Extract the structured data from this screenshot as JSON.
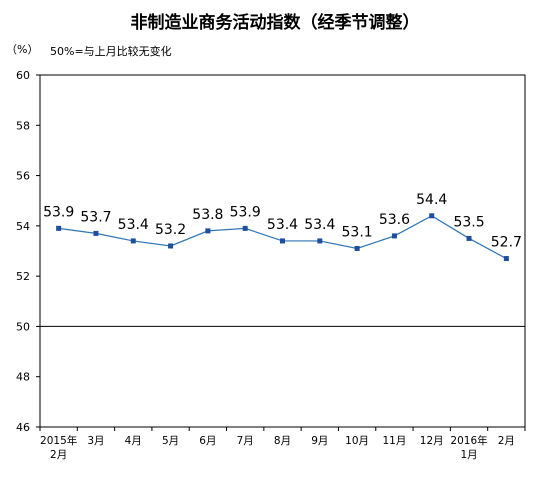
{
  "chart_data": {
    "type": "line",
    "title": "非制造业商务活动指数（经季节调整）",
    "y_unit_label": "（%）",
    "note": "50%=与上月比较无变化",
    "categories": [
      "2015年\n2月",
      "3月",
      "4月",
      "5月",
      "6月",
      "7月",
      "8月",
      "9月",
      "10月",
      "11月",
      "12月",
      "2016年\n1月",
      "2月"
    ],
    "series": [
      {
        "values": [
          53.9,
          53.7,
          53.4,
          53.2,
          53.8,
          53.9,
          53.4,
          53.4,
          53.1,
          53.6,
          54.4,
          53.5,
          52.7
        ],
        "data_labels": [
          "53.9",
          "53.7",
          "53.4",
          "53.2",
          "53.8",
          "53.9",
          "53.4",
          "53.4",
          "53.1",
          "53.6",
          "54.4",
          "53.5",
          "52.7"
        ]
      }
    ],
    "ylim": [
      46,
      60
    ],
    "yticks": [
      46,
      48,
      50,
      52,
      54,
      56,
      58,
      60
    ],
    "reference_line": 50,
    "grid": false,
    "line_color": "#2e75b6",
    "marker_color": "#1f4e9c"
  }
}
